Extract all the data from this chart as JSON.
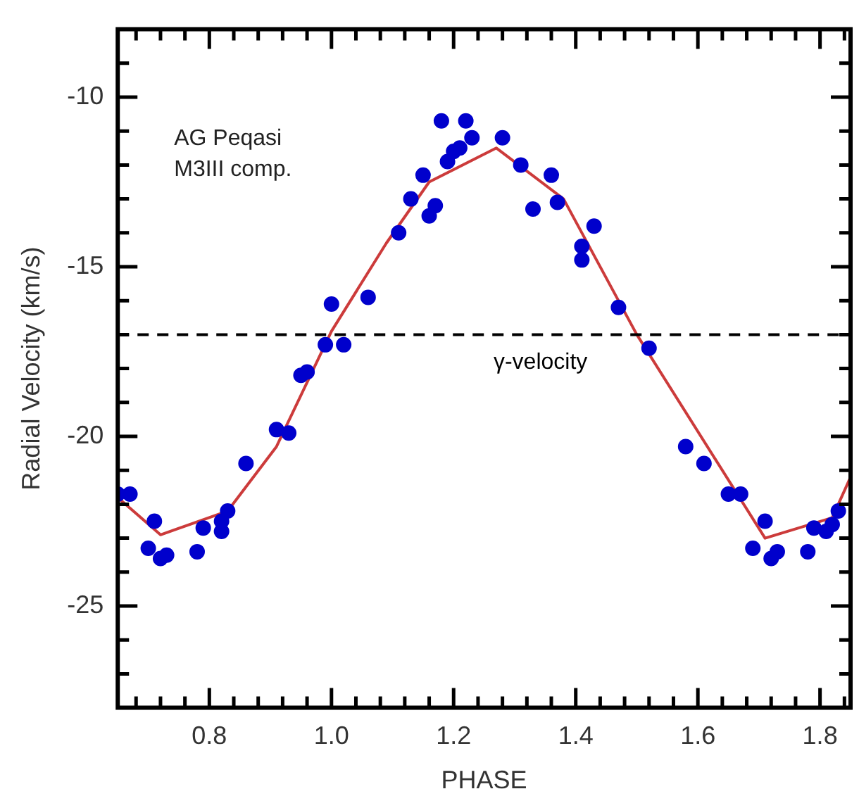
{
  "chart_data": {
    "type": "scatter",
    "xlabel": "PHASE",
    "ylabel": "Radial Velocity (km/s)",
    "annotations": [
      "AG Peqasi",
      "M3III comp."
    ],
    "xlim": [
      0.65,
      1.85
    ],
    "ylim": [
      -28,
      -8
    ],
    "xticks": [
      {
        "value": 0.68,
        "label": null
      },
      {
        "value": 0.72,
        "label": null
      },
      {
        "value": 0.76,
        "label": null
      },
      {
        "value": 0.8,
        "label": "0.8"
      },
      {
        "value": 0.84,
        "label": null
      },
      {
        "value": 0.88,
        "label": null
      },
      {
        "value": 0.92,
        "label": null
      },
      {
        "value": 0.96,
        "label": null
      },
      {
        "value": 1.0,
        "label": "1.0"
      },
      {
        "value": 1.04,
        "label": null
      },
      {
        "value": 1.08,
        "label": null
      },
      {
        "value": 1.12,
        "label": null
      },
      {
        "value": 1.16,
        "label": null
      },
      {
        "value": 1.2,
        "label": "1.2"
      },
      {
        "value": 1.24,
        "label": null
      },
      {
        "value": 1.28,
        "label": null
      },
      {
        "value": 1.32,
        "label": null
      },
      {
        "value": 1.36,
        "label": null
      },
      {
        "value": 1.4,
        "label": "1.4"
      },
      {
        "value": 1.44,
        "label": null
      },
      {
        "value": 1.48,
        "label": null
      },
      {
        "value": 1.52,
        "label": null
      },
      {
        "value": 1.56,
        "label": null
      },
      {
        "value": 1.6,
        "label": "1.6"
      },
      {
        "value": 1.64,
        "label": null
      },
      {
        "value": 1.68,
        "label": null
      },
      {
        "value": 1.72,
        "label": null
      },
      {
        "value": 1.76,
        "label": null
      },
      {
        "value": 1.8,
        "label": "1.8"
      },
      {
        "value": 1.84,
        "label": null
      }
    ],
    "yticks": [
      {
        "value": -27,
        "label": null
      },
      {
        "value": -26,
        "label": null
      },
      -25,
      {
        "value": -24,
        "label": null
      },
      {
        "value": -23,
        "label": null
      },
      {
        "value": -22,
        "label": null
      },
      {
        "value": -21,
        "label": null
      },
      -20,
      {
        "value": -19,
        "label": null
      },
      {
        "value": -18,
        "label": null
      },
      {
        "value": -17,
        "label": null
      },
      {
        "value": -16,
        "label": null
      },
      -15,
      {
        "value": -14,
        "label": null
      },
      {
        "value": -13,
        "label": null
      },
      {
        "value": -12,
        "label": null
      },
      {
        "value": -11,
        "label": null
      },
      -10,
      {
        "value": -9,
        "label": null
      }
    ],
    "grid": false,
    "legend": false,
    "marker": "circle",
    "ref_lines": [
      {
        "axis": "y",
        "value": -17,
        "label": "γ-velocity",
        "line_style": "dashed",
        "color": "#000000"
      }
    ],
    "series": [
      {
        "color": "#0000cc",
        "x": [
          0.65,
          0.67,
          0.71,
          0.7,
          0.72,
          0.73,
          0.78,
          0.79,
          0.82,
          0.82,
          0.83,
          0.86,
          0.91,
          0.93,
          0.95,
          0.96,
          0.99,
          1.0,
          1.02,
          1.06,
          1.11,
          1.13,
          1.15,
          1.16,
          1.17,
          1.18,
          1.19,
          1.2,
          1.21,
          1.22,
          1.23,
          1.28,
          1.31,
          1.36,
          1.33,
          1.37,
          1.43,
          1.41,
          1.41,
          1.47,
          1.52,
          1.58,
          1.61,
          1.65,
          1.67,
          1.71,
          1.69,
          1.72,
          1.73,
          1.78,
          1.79,
          1.81,
          1.82,
          1.83
        ],
        "values": [
          -21.7,
          -21.7,
          -22.5,
          -23.3,
          -23.6,
          -23.5,
          -23.4,
          -22.7,
          -22.8,
          -22.5,
          -22.2,
          -20.8,
          -19.8,
          -19.9,
          -18.2,
          -18.1,
          -17.3,
          -16.1,
          -17.3,
          -15.9,
          -14.0,
          -13.0,
          -12.3,
          -13.5,
          -13.2,
          -10.7,
          -11.9,
          -11.6,
          -11.5,
          -10.7,
          -11.2,
          -11.2,
          -12.0,
          -12.3,
          -13.3,
          -13.1,
          -13.8,
          -14.4,
          -14.8,
          -16.2,
          -17.4,
          -20.3,
          -20.8,
          -21.7,
          -21.7,
          -22.5,
          -23.3,
          -23.6,
          -23.4,
          -23.4,
          -22.7,
          -22.8,
          -22.6,
          -22.2
        ]
      },
      {
        "type": "line",
        "marker": "none",
        "color": "#cc3b3b",
        "x": [
          0.65,
          0.72,
          0.83,
          0.91,
          1.0,
          1.09,
          1.16,
          1.27,
          1.38,
          1.5,
          1.71,
          1.82,
          1.85
        ],
        "values": [
          -21.8,
          -22.9,
          -22.2,
          -20.3,
          -16.9,
          -14.3,
          -12.5,
          -11.5,
          -13.0,
          -17.0,
          -23.0,
          -22.4,
          -21.2
        ]
      }
    ]
  }
}
